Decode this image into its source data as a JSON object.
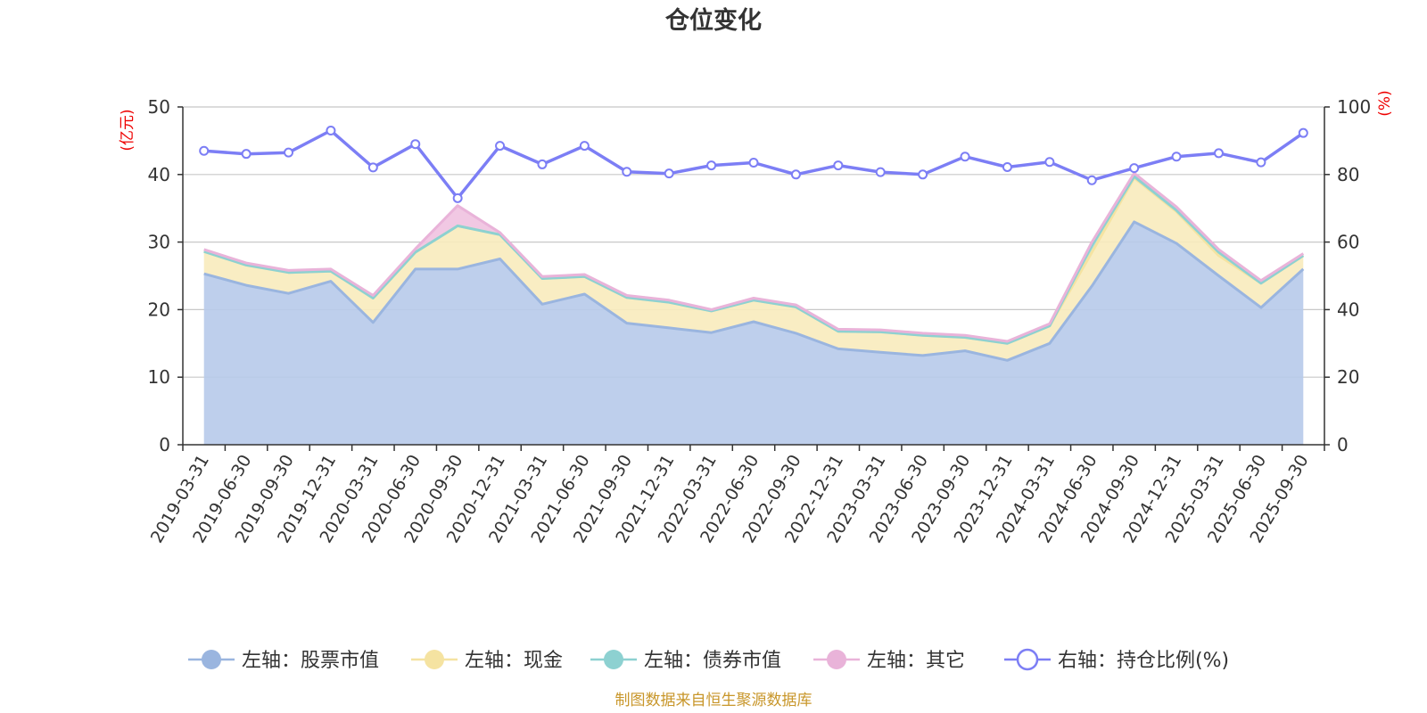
{
  "chart_data": {
    "type": "area",
    "title": "仓位变化",
    "left_axis_unit": "(亿元)",
    "right_axis_unit": "(%)",
    "left_ylim": [
      0,
      50
    ],
    "right_ylim": [
      0,
      100
    ],
    "left_ticks": [
      "0",
      "10",
      "20",
      "30",
      "40",
      "50"
    ],
    "right_ticks": [
      "0",
      "20",
      "40",
      "60",
      "80",
      "100"
    ],
    "categories": [
      "2019-03-31",
      "2019-06-30",
      "2019-09-30",
      "2019-12-31",
      "2020-03-31",
      "2020-06-30",
      "2020-09-30",
      "2020-12-31",
      "2021-03-31",
      "2021-06-30",
      "2021-09-30",
      "2021-12-31",
      "2022-03-31",
      "2022-06-30",
      "2022-09-30",
      "2022-12-31",
      "2023-03-31",
      "2023-06-30",
      "2023-09-30",
      "2023-12-31",
      "2024-03-31",
      "2024-06-30",
      "2024-09-30",
      "2024-12-31",
      "2025-03-31",
      "2025-06-30",
      "2025-09-30"
    ],
    "series": [
      {
        "name": "左轴：股票市值",
        "axis": "left",
        "stack": true,
        "color": "#9ab5df",
        "fill": "#b7caea",
        "values": [
          25.3,
          23.6,
          22.4,
          24.2,
          18.1,
          26.0,
          26.0,
          27.5,
          20.8,
          22.3,
          18.0,
          17.3,
          16.6,
          18.2,
          16.5,
          14.2,
          13.7,
          13.2,
          13.9,
          12.5,
          15.0,
          23.5,
          33.0,
          29.8,
          25.0,
          20.3,
          26.0
        ]
      },
      {
        "name": "左轴：现金",
        "axis": "left",
        "stack": true,
        "color": "#f5e3a1",
        "fill": "#f8ebbc",
        "values": [
          3.3,
          3.0,
          3.1,
          1.5,
          3.6,
          2.5,
          6.4,
          3.6,
          3.8,
          2.6,
          3.8,
          3.8,
          3.2,
          3.2,
          3.9,
          2.6,
          3.0,
          3.0,
          2.0,
          2.5,
          2.6,
          5.0,
          6.5,
          4.7,
          3.0,
          3.6,
          2.0
        ]
      },
      {
        "name": "左轴：债券市值",
        "axis": "left",
        "stack": true,
        "color": "#8dd1d1",
        "fill": "#a6dbdb",
        "values": [
          0,
          0,
          0,
          0,
          0,
          0,
          0,
          0,
          0,
          0,
          0,
          0,
          0,
          0,
          0,
          0,
          0,
          0,
          0,
          0,
          0,
          1.0,
          0.2,
          0.2,
          0.5,
          0,
          0
        ]
      },
      {
        "name": "左轴：其它",
        "axis": "left",
        "stack": true,
        "color": "#e9b3d9",
        "fill": "#efc2e0",
        "values": [
          0.3,
          0.3,
          0.3,
          0.3,
          0.4,
          0.5,
          3.0,
          0.3,
          0.3,
          0.3,
          0.3,
          0.3,
          0.2,
          0.3,
          0.3,
          0.3,
          0.3,
          0.3,
          0.3,
          0.3,
          0.3,
          0.5,
          0.5,
          0.5,
          0.4,
          0.4,
          0.3
        ]
      },
      {
        "name": "右轴：持仓比例(%)",
        "axis": "right",
        "stack": false,
        "color": "#7c7ef5",
        "values": [
          87.0,
          86.1,
          86.5,
          93.0,
          82.1,
          89.0,
          73.0,
          88.5,
          83.0,
          88.5,
          80.8,
          80.3,
          82.7,
          83.5,
          80.0,
          82.7,
          80.7,
          80.0,
          85.3,
          82.2,
          83.7,
          78.3,
          81.9,
          85.3,
          86.3,
          83.6,
          92.3
        ]
      }
    ],
    "source_note": "制图数据来自恒生聚源数据库"
  }
}
